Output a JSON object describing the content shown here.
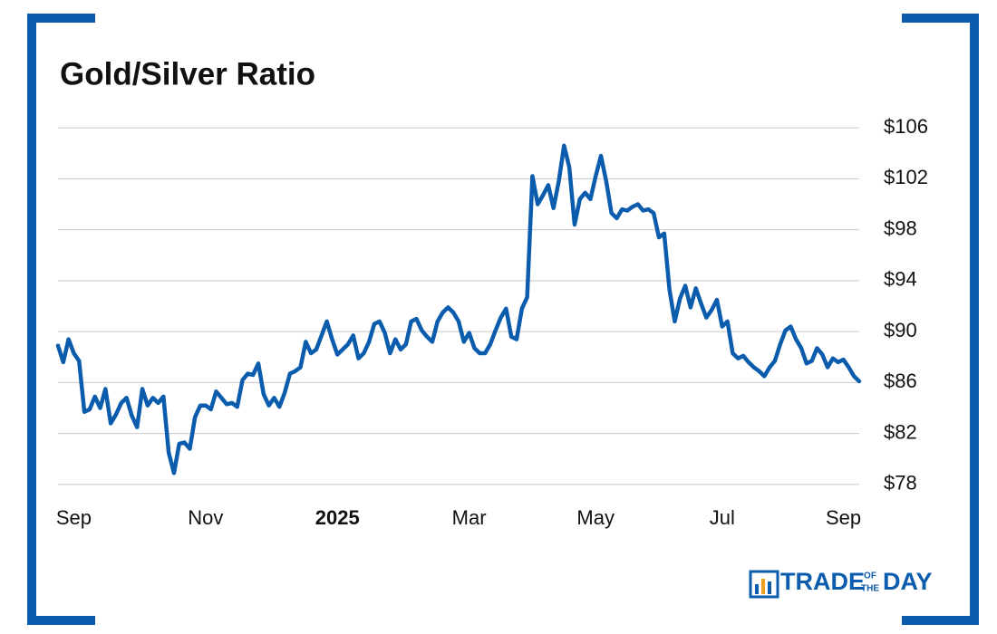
{
  "chart_data": {
    "type": "line",
    "title": "Gold/Silver Ratio",
    "categories": [
      null,
      null,
      null,
      "Sep",
      null,
      null,
      null,
      null,
      null,
      null,
      null,
      null,
      null,
      null,
      null,
      null,
      null,
      null,
      null,
      null,
      null,
      null,
      null,
      null,
      null,
      null,
      null,
      null,
      "Nov",
      null,
      null,
      null,
      null,
      null,
      null,
      null,
      null,
      null,
      null,
      null,
      null,
      null,
      null,
      null,
      null,
      null,
      null,
      null,
      null,
      null,
      null,
      null,
      null,
      "2025",
      null,
      null,
      null,
      null,
      null,
      null,
      null,
      null,
      null,
      null,
      null,
      null,
      null,
      null,
      null,
      null,
      null,
      null,
      null,
      null,
      null,
      null,
      null,
      null,
      "Mar",
      null,
      null,
      null,
      null,
      null,
      null,
      null,
      null,
      null,
      null,
      null,
      null,
      null,
      null,
      null,
      null,
      null,
      null,
      null,
      null,
      null,
      null,
      null,
      "May",
      null,
      null,
      null,
      null,
      null,
      null,
      null,
      null,
      null,
      null,
      null,
      null,
      null,
      null,
      null,
      null,
      null,
      null,
      null,
      null,
      null,
      null,
      null,
      "Jul",
      null,
      null,
      null,
      null,
      null,
      null,
      null,
      null,
      null,
      null,
      null,
      null,
      null,
      null,
      null,
      null,
      null,
      null,
      null,
      null,
      null,
      null,
      "Sep",
      null,
      null,
      null
    ],
    "values": [
      88.9,
      87.6,
      89.4,
      88.3,
      87.7,
      83.7,
      83.9,
      84.9,
      84.0,
      85.5,
      82.8,
      83.5,
      84.4,
      84.8,
      83.4,
      82.5,
      85.5,
      84.2,
      84.8,
      84.4,
      84.9,
      80.5,
      78.9,
      81.2,
      81.3,
      80.8,
      83.3,
      84.2,
      84.2,
      83.9,
      85.3,
      84.8,
      84.3,
      84.4,
      84.1,
      86.2,
      86.7,
      86.6,
      87.5,
      85.1,
      84.2,
      84.8,
      84.1,
      85.2,
      86.7,
      86.9,
      87.2,
      89.2,
      88.3,
      88.6,
      89.7,
      90.8,
      89.4,
      88.2,
      88.6,
      89.0,
      89.7,
      87.9,
      88.3,
      89.2,
      90.6,
      90.8,
      89.9,
      88.3,
      89.4,
      88.6,
      89.0,
      90.8,
      91.0,
      90.1,
      89.6,
      89.2,
      90.8,
      91.5,
      91.9,
      91.5,
      90.8,
      89.2,
      89.9,
      88.7,
      88.3,
      88.3,
      89.0,
      90.1,
      91.1,
      91.8,
      89.6,
      89.4,
      91.8,
      92.7,
      102.2,
      100.0,
      100.7,
      101.5,
      99.7,
      101.8,
      104.6,
      102.9,
      98.4,
      100.4,
      100.9,
      100.4,
      102.2,
      103.8,
      101.8,
      99.3,
      98.9,
      99.6,
      99.5,
      99.8,
      100.0,
      99.5,
      99.6,
      99.3,
      97.4,
      97.7,
      93.3,
      90.8,
      92.6,
      93.6,
      91.9,
      93.4,
      92.2,
      91.1,
      91.7,
      92.5,
      90.4,
      90.8,
      88.3,
      87.9,
      88.1,
      87.6,
      87.2,
      86.9,
      86.5,
      87.2,
      87.7,
      89.0,
      90.1,
      90.4,
      89.4,
      88.7,
      87.5,
      87.7,
      88.7,
      88.2,
      87.2,
      87.9,
      87.6,
      87.8,
      87.2,
      86.5,
      86.1
    ],
    "color": "#0b5cad",
    "ylim": [
      77,
      107
    ],
    "yticks": [
      {
        "value": 78,
        "label": "$78"
      },
      {
        "value": 82,
        "label": "$82"
      },
      {
        "value": 86,
        "label": "$86"
      },
      {
        "value": 90,
        "label": "$90"
      },
      {
        "value": 94,
        "label": "$94"
      },
      {
        "value": 98,
        "label": "$98"
      },
      {
        "value": 102,
        "label": "$102"
      },
      {
        "value": 106,
        "label": "$106"
      }
    ],
    "grid": true
  },
  "brand": {
    "left": "TRADE",
    "middle_top": "OF",
    "middle_bottom": "THE",
    "right": "DAY"
  }
}
